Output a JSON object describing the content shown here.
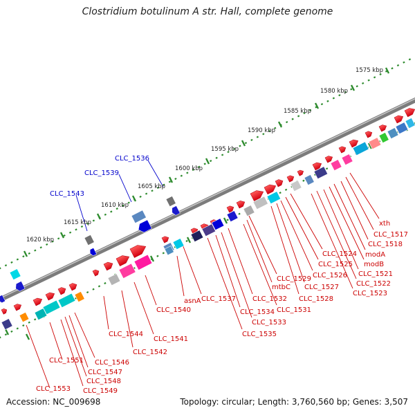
{
  "title": "Clostridium botulinum A str. Hall, complete genome",
  "footer": {
    "accession": "Accession: NC_009698",
    "topology": "Topology: circular; Length: 3,760,560 bp; Genes: 3,507"
  },
  "colors": {
    "forward_gene": "#e8101c",
    "backbone": "#8a8a8a",
    "tick_dots": "#2e8b2e",
    "label_line": "#cc0000",
    "label_text_red": "#cc0000",
    "label_text_blue": "#0000cc"
  },
  "kbp_labels": [
    "1575 kbp",
    "1580 kbp",
    "1585 kbp",
    "1590 kbp",
    "1595 kbp",
    "1600 kbp",
    "1605 kbp",
    "1610 kbp",
    "1615 kbp",
    "1620 kbp"
  ],
  "gene_labels_top": [
    "CLC_1536",
    "CLC_1539",
    "CLC_1543"
  ],
  "gene_labels_bottom": [
    "xth",
    "CLC_1517",
    "CLC_1518",
    "modA",
    "modB",
    "CLC_1521",
    "CLC_1522",
    "CLC_1523",
    "CLC_1524",
    "CLC_1525",
    "CLC_1526",
    "CLC_1527",
    "CLC_1528",
    "CLC_1529",
    "mtbC",
    "CLC_1531",
    "CLC_1532",
    "CLC_1533",
    "CLC_1534",
    "CLC_1535",
    "CLC_1537",
    "asnA",
    "CLC_1540",
    "CLC_1541",
    "CLC_1542",
    "CLC_1544",
    "CLC_1546",
    "CLC_1547",
    "CLC_1548",
    "CLC_1549",
    "CLC_1551",
    "CLC_1553"
  ]
}
